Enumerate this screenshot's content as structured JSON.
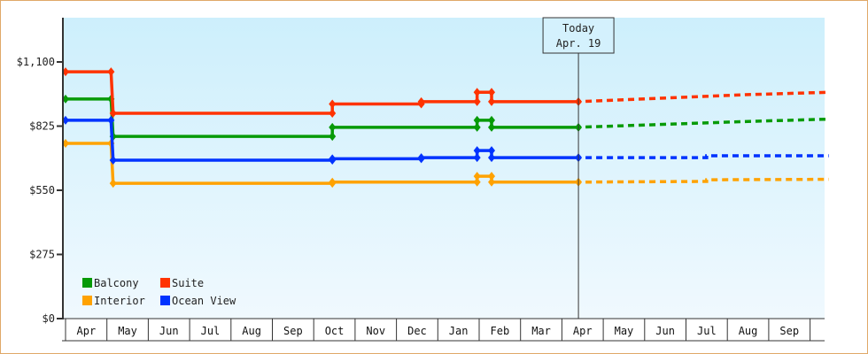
{
  "chart_data": {
    "type": "line",
    "title": "",
    "xlabel": "",
    "ylabel": "",
    "ylim": [
      0,
      1210
    ],
    "yticks": [
      0,
      275,
      550,
      825,
      1100
    ],
    "ytick_labels": [
      "$0",
      "$275",
      "$550",
      "$825",
      "$1,100"
    ],
    "x_months": [
      "Apr",
      "May",
      "Jun",
      "Jul",
      "Aug",
      "Sep",
      "Oct",
      "Nov",
      "Dec",
      "Jan",
      "Feb",
      "Mar",
      "Apr",
      "May",
      "Jun",
      "Jul",
      "Aug",
      "Sep"
    ],
    "today_marker": {
      "line1": "Today",
      "line2": "Apr. 19",
      "month_index": 12.4
    },
    "legend_position": "lower-left",
    "grid": false,
    "series": [
      {
        "name": "Balcony",
        "color": "#079a07",
        "points": [
          [
            0,
            941
          ],
          [
            1.1,
            941
          ],
          [
            1.15,
            781
          ],
          [
            6.45,
            781
          ],
          [
            6.45,
            820
          ],
          [
            9.95,
            820
          ],
          [
            9.95,
            850
          ],
          [
            10.3,
            850
          ],
          [
            10.3,
            820
          ],
          [
            12.4,
            820
          ]
        ],
        "forecast": [
          [
            12.4,
            820
          ],
          [
            16.5,
            845
          ],
          [
            18.45,
            855
          ]
        ]
      },
      {
        "name": "Suite",
        "color": "#ff3300",
        "points": [
          [
            0,
            1058
          ],
          [
            1.1,
            1058
          ],
          [
            1.15,
            880
          ],
          [
            6.45,
            880
          ],
          [
            6.45,
            920
          ],
          [
            8.6,
            920
          ],
          [
            8.6,
            930
          ],
          [
            9.95,
            930
          ],
          [
            9.95,
            970
          ],
          [
            10.3,
            970
          ],
          [
            10.3,
            930
          ],
          [
            12.4,
            930
          ]
        ],
        "forecast": [
          [
            12.4,
            930
          ],
          [
            16.5,
            960
          ],
          [
            18.45,
            970
          ]
        ]
      },
      {
        "name": "Interior",
        "color": "#ffa200",
        "points": [
          [
            0,
            751
          ],
          [
            1.1,
            751
          ],
          [
            1.15,
            580
          ],
          [
            6.45,
            580
          ],
          [
            6.45,
            585
          ],
          [
            9.95,
            585
          ],
          [
            9.95,
            610
          ],
          [
            10.3,
            610
          ],
          [
            10.3,
            585
          ],
          [
            12.4,
            585
          ]
        ],
        "forecast": [
          [
            12.4,
            585
          ],
          [
            15.5,
            588
          ],
          [
            15.5,
            595
          ],
          [
            18.45,
            597
          ]
        ]
      },
      {
        "name": "Ocean View",
        "color": "#0033ff",
        "points": [
          [
            0,
            850
          ],
          [
            1.1,
            850
          ],
          [
            1.15,
            679
          ],
          [
            6.45,
            679
          ],
          [
            6.45,
            685
          ],
          [
            8.6,
            685
          ],
          [
            8.6,
            690
          ],
          [
            9.95,
            690
          ],
          [
            9.95,
            720
          ],
          [
            10.3,
            720
          ],
          [
            10.3,
            690
          ],
          [
            12.4,
            690
          ]
        ],
        "forecast": [
          [
            12.4,
            690
          ],
          [
            15.5,
            690
          ],
          [
            15.5,
            698
          ],
          [
            18.45,
            698
          ]
        ]
      }
    ]
  }
}
